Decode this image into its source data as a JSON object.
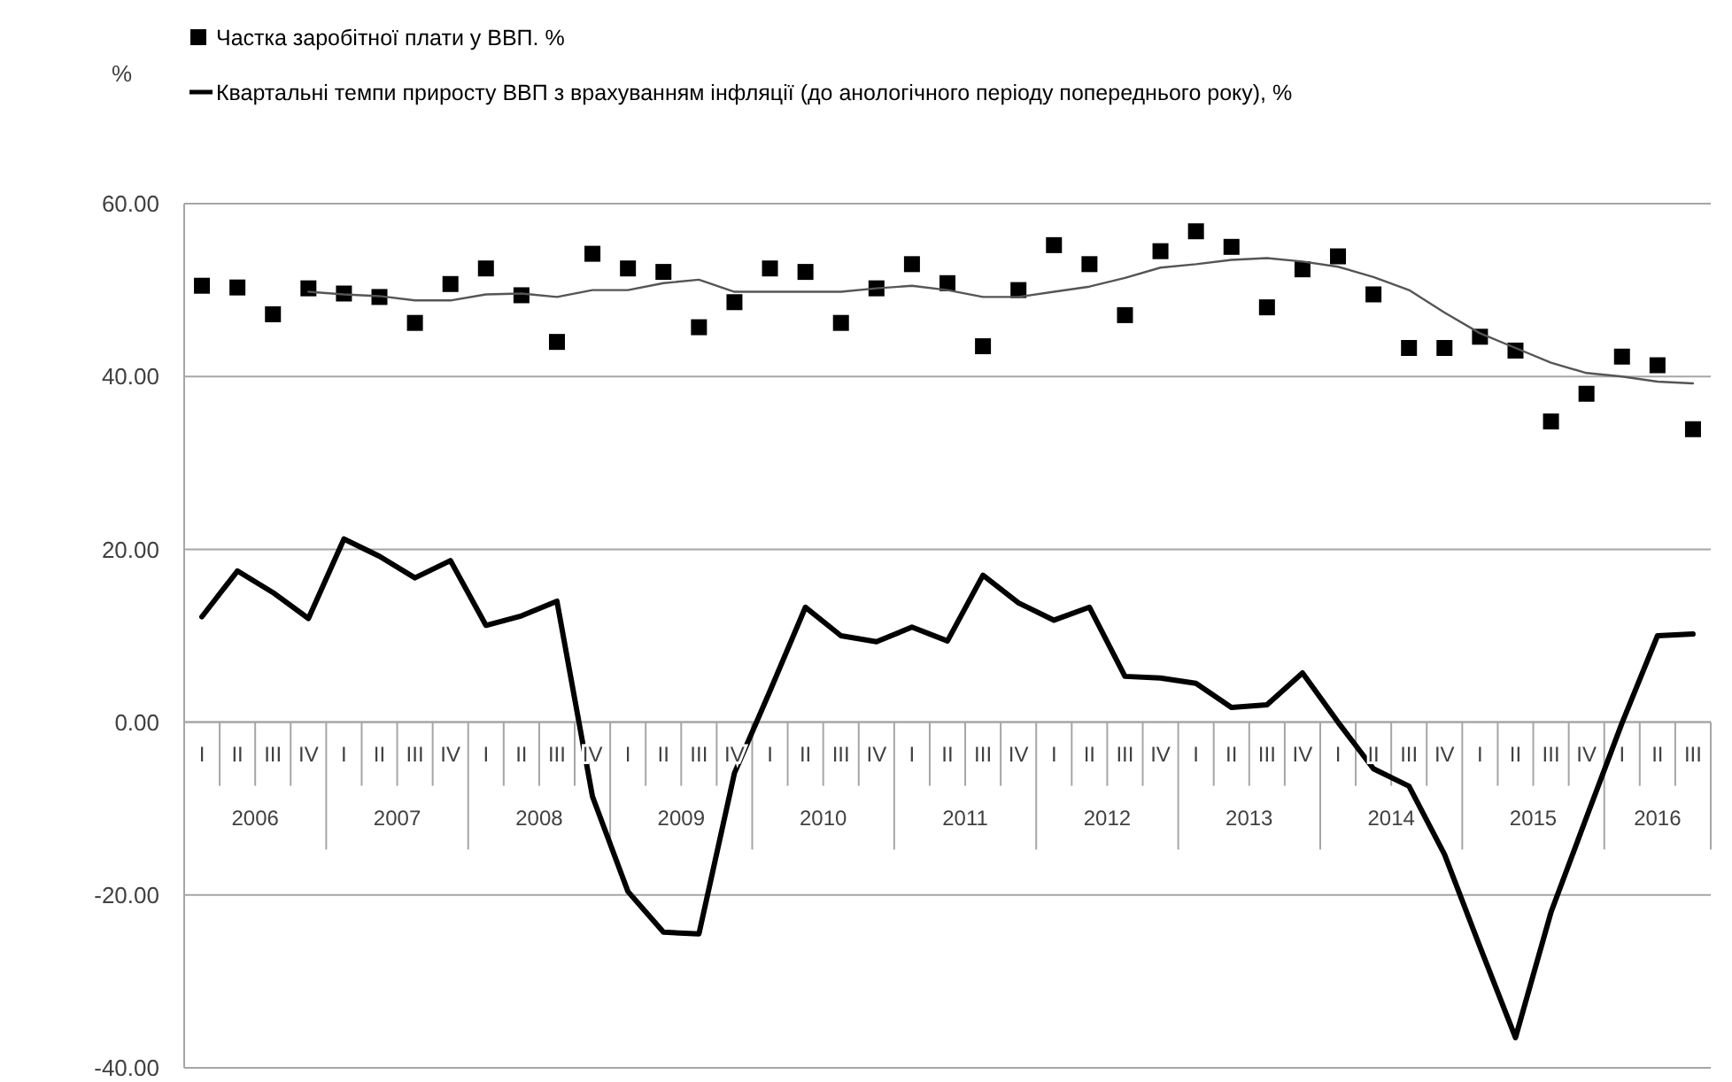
{
  "chart_data": {
    "type": "line",
    "ylabel": "%",
    "legend": "top left",
    "grid": "y",
    "categories": [
      "I",
      "II",
      "III",
      "IV",
      "I",
      "II",
      "III",
      "IV",
      "I",
      "II",
      "III",
      "IV",
      "I",
      "II",
      "III",
      "IV",
      "I",
      "II",
      "III",
      "IV",
      "I",
      "II",
      "III",
      "IV",
      "I",
      "II",
      "III",
      "IV",
      "I",
      "II",
      "III",
      "IV",
      "I",
      "II",
      "III",
      "IV",
      "I",
      "II",
      "III",
      "IV",
      "I",
      "II",
      "III"
    ],
    "annotations": [
      "2006",
      "2007",
      "2008",
      "2009",
      "2010",
      "2011",
      "2012",
      "2013",
      "2014",
      "2015",
      "2016"
    ],
    "ylim": [
      -40,
      60
    ],
    "yticks": [
      {
        "value": -40,
        "label": "-40.00"
      },
      {
        "value": -20,
        "label": "-20.00"
      },
      {
        "value": 0,
        "label": "0.00"
      },
      {
        "value": 20,
        "label": "20.00"
      },
      {
        "value": 40,
        "label": "40.00"
      },
      {
        "value": 60,
        "label": "60.00"
      }
    ],
    "series": [
      {
        "type": "scatter",
        "marker": "square",
        "name": "Частка заробітної плати у ВВП. %",
        "color": "#000000",
        "values": [
          50.5,
          50.3,
          47.2,
          50.2,
          49.6,
          49.2,
          46.2,
          50.7,
          52.5,
          49.4,
          44.0,
          54.2,
          52.5,
          52.1,
          45.7,
          48.6,
          52.5,
          52.1,
          46.2,
          50.2,
          53.0,
          50.8,
          43.5,
          50.0,
          55.2,
          53.0,
          47.1,
          54.5,
          56.8,
          55.0,
          48.0,
          52.4,
          53.9,
          49.5,
          43.3,
          43.3,
          44.6,
          43.0,
          34.8,
          38.0,
          42.3,
          41.3,
          33.9
        ]
      },
      {
        "name": "Квартальні темпи приросту ВВП з врахуванням інфляції (до анологічного періоду попереднього року), %",
        "color": "#000000",
        "values": [
          12.2,
          17.5,
          15.0,
          12.0,
          21.2,
          19.2,
          16.7,
          18.7,
          11.2,
          12.3,
          14.0,
          -8.6,
          -19.6,
          -24.3,
          -24.5,
          -5.9,
          3.6,
          13.3,
          10.0,
          9.3,
          11.0,
          9.4,
          17.0,
          13.8,
          11.8,
          13.3,
          5.3,
          5.1,
          4.5,
          1.7,
          2.0,
          5.7,
          0.0,
          -5.4,
          -7.4,
          -15.3,
          -26.0,
          -36.5,
          -22.0,
          -11.0,
          -0.1,
          10.0,
          10.2
        ]
      },
      {
        "color": "#555555",
        "values": [
          null,
          null,
          null,
          49.8,
          49.5,
          49.3,
          48.8,
          48.8,
          49.5,
          49.6,
          49.2,
          50.0,
          50.0,
          50.8,
          51.2,
          49.8,
          49.8,
          49.8,
          49.8,
          50.2,
          50.5,
          50.0,
          49.2,
          49.2,
          49.8,
          50.4,
          51.4,
          52.6,
          53.0,
          53.5,
          53.7,
          53.3,
          52.7,
          51.5,
          50.0,
          47.4,
          45.0,
          43.3,
          41.6,
          40.4,
          40.0,
          39.4,
          39.2
        ]
      }
    ]
  }
}
